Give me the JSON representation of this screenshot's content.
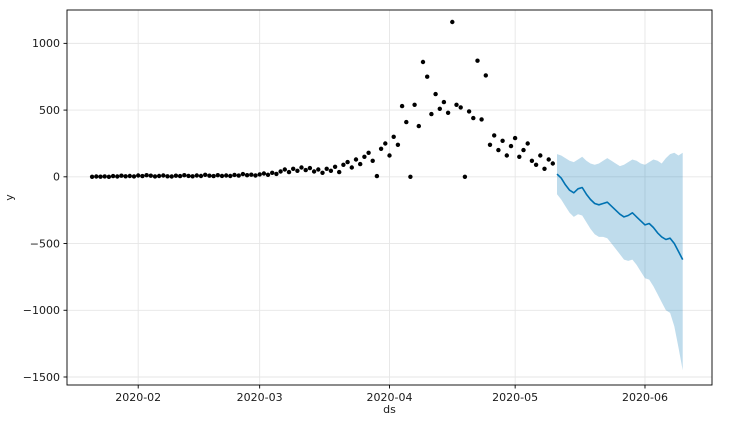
{
  "figure": {
    "background": "#ffffff",
    "grid_color": "#e6e6e6",
    "spine_color": "#000000",
    "text_color": "#1a1a1a"
  },
  "chart_data": {
    "type": "scatter",
    "description": "Prophet-style time series forecast: black observed points, blue forecast line with shaded uncertainty interval",
    "title": "",
    "xlabel": "ds",
    "ylabel": "y",
    "x_ticks": [
      "2020-02",
      "2020-03",
      "2020-04",
      "2020-05",
      "2020-06"
    ],
    "y_ticks": [
      1000,
      500,
      0,
      -500,
      -1000,
      -1500
    ],
    "xlim": [
      "2020-01-15",
      "2020-06-17"
    ],
    "ylim": [
      -1560,
      1250
    ],
    "grid": true,
    "legend": "none",
    "series": {
      "observed": {
        "label": "observed",
        "marker": "point",
        "color": "#000000",
        "x": [
          "2020-01-21",
          "2020-01-22",
          "2020-01-23",
          "2020-01-24",
          "2020-01-25",
          "2020-01-26",
          "2020-01-27",
          "2020-01-28",
          "2020-01-29",
          "2020-01-30",
          "2020-01-31",
          "2020-02-01",
          "2020-02-02",
          "2020-02-03",
          "2020-02-04",
          "2020-02-05",
          "2020-02-06",
          "2020-02-07",
          "2020-02-08",
          "2020-02-09",
          "2020-02-10",
          "2020-02-11",
          "2020-02-12",
          "2020-02-13",
          "2020-02-14",
          "2020-02-15",
          "2020-02-16",
          "2020-02-17",
          "2020-02-18",
          "2020-02-19",
          "2020-02-20",
          "2020-02-21",
          "2020-02-22",
          "2020-02-23",
          "2020-02-24",
          "2020-02-25",
          "2020-02-26",
          "2020-02-27",
          "2020-02-28",
          "2020-02-29",
          "2020-03-01",
          "2020-03-02",
          "2020-03-03",
          "2020-03-04",
          "2020-03-05",
          "2020-03-06",
          "2020-03-07",
          "2020-03-08",
          "2020-03-09",
          "2020-03-10",
          "2020-03-11",
          "2020-03-12",
          "2020-03-13",
          "2020-03-14",
          "2020-03-15",
          "2020-03-16",
          "2020-03-17",
          "2020-03-18",
          "2020-03-19",
          "2020-03-20",
          "2020-03-21",
          "2020-03-22",
          "2020-03-23",
          "2020-03-24",
          "2020-03-25",
          "2020-03-26",
          "2020-03-27",
          "2020-03-28",
          "2020-03-29",
          "2020-03-30",
          "2020-03-31",
          "2020-04-01",
          "2020-04-02",
          "2020-04-03",
          "2020-04-04",
          "2020-04-05",
          "2020-04-06",
          "2020-04-07",
          "2020-04-08",
          "2020-04-09",
          "2020-04-10",
          "2020-04-11",
          "2020-04-12",
          "2020-04-13",
          "2020-04-14",
          "2020-04-15",
          "2020-04-16",
          "2020-04-17",
          "2020-04-18",
          "2020-04-19",
          "2020-04-20",
          "2020-04-21",
          "2020-04-22",
          "2020-04-23",
          "2020-04-24",
          "2020-04-25",
          "2020-04-26",
          "2020-04-27",
          "2020-04-28",
          "2020-04-29",
          "2020-04-30",
          "2020-05-01",
          "2020-05-02",
          "2020-05-03",
          "2020-05-04",
          "2020-05-05",
          "2020-05-06",
          "2020-05-07",
          "2020-05-08",
          "2020-05-09",
          "2020-05-10"
        ],
        "y": [
          0,
          2,
          1,
          3,
          0,
          5,
          2,
          8,
          4,
          6,
          3,
          10,
          5,
          12,
          8,
          3,
          6,
          10,
          4,
          2,
          8,
          5,
          12,
          7,
          4,
          10,
          6,
          15,
          8,
          5,
          12,
          7,
          10,
          6,
          14,
          9,
          20,
          12,
          16,
          10,
          18,
          25,
          15,
          30,
          22,
          40,
          55,
          35,
          60,
          45,
          70,
          50,
          65,
          40,
          55,
          30,
          60,
          45,
          75,
          35,
          90,
          110,
          70,
          130,
          95,
          150,
          180,
          120,
          5,
          210,
          250,
          160,
          300,
          240,
          530,
          410,
          0,
          540,
          380,
          860,
          750,
          470,
          620,
          510,
          560,
          480,
          1160,
          540,
          520,
          0,
          490,
          440,
          870,
          430,
          760,
          240,
          310,
          200,
          270,
          160,
          230,
          290,
          150,
          200,
          250,
          120,
          90,
          160,
          60,
          130,
          100
        ]
      },
      "forecast": {
        "label": "forecast (yhat) with uncertainty interval",
        "color": "#0072b2",
        "band_opacity": 0.25,
        "x": [
          "2020-05-11",
          "2020-05-12",
          "2020-05-13",
          "2020-05-14",
          "2020-05-15",
          "2020-05-16",
          "2020-05-17",
          "2020-05-18",
          "2020-05-19",
          "2020-05-20",
          "2020-05-21",
          "2020-05-22",
          "2020-05-23",
          "2020-05-24",
          "2020-05-25",
          "2020-05-26",
          "2020-05-27",
          "2020-05-28",
          "2020-05-29",
          "2020-05-30",
          "2020-05-31",
          "2020-06-01",
          "2020-06-02",
          "2020-06-03",
          "2020-06-04",
          "2020-06-05",
          "2020-06-06",
          "2020-06-07",
          "2020-06-08",
          "2020-06-09",
          "2020-06-10"
        ],
        "yhat": [
          20,
          -10,
          -60,
          -100,
          -120,
          -90,
          -80,
          -130,
          -170,
          -200,
          -210,
          -200,
          -190,
          -220,
          -250,
          -280,
          -300,
          -290,
          -270,
          -300,
          -330,
          -360,
          -350,
          -380,
          -420,
          -450,
          -470,
          -460,
          -500,
          -560,
          -620
        ],
        "lower": [
          -130,
          -170,
          -220,
          -270,
          -300,
          -280,
          -290,
          -340,
          -390,
          -430,
          -450,
          -450,
          -460,
          -500,
          -540,
          -580,
          -620,
          -630,
          -620,
          -660,
          -710,
          -760,
          -770,
          -820,
          -880,
          -940,
          -1000,
          -1020,
          -1120,
          -1280,
          -1450
        ],
        "upper": [
          170,
          160,
          140,
          120,
          110,
          130,
          150,
          120,
          100,
          90,
          100,
          120,
          140,
          120,
          100,
          80,
          90,
          110,
          130,
          120,
          100,
          90,
          110,
          130,
          120,
          100,
          140,
          170,
          180,
          160,
          180
        ]
      }
    }
  }
}
